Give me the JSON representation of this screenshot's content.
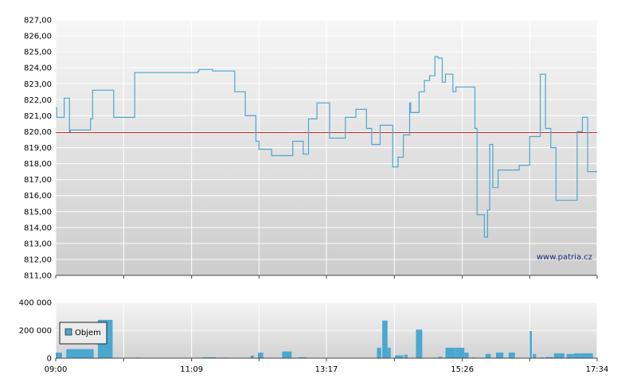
{
  "watermark": "www.patria.cz",
  "chart_data": [
    {
      "type": "line",
      "title": "",
      "ylim": [
        811,
        827
      ],
      "yticks": [
        "811,00",
        "812,00",
        "813,00",
        "814,00",
        "815,00",
        "816,00",
        "817,00",
        "818,00",
        "819,00",
        "820,00",
        "821,00",
        "822,00",
        "823,00",
        "824,00",
        "825,00",
        "826,00",
        "827,00"
      ],
      "xlim": [
        "09:00",
        "17:34"
      ],
      "reference_line": 819.95,
      "colors": {
        "line": "#4aa8d0",
        "reference": "#cc2222"
      },
      "series": [
        {
          "x": [
            "09:00",
            "09:01",
            "09:08",
            "09:13",
            "09:14",
            "09:25",
            "09:33",
            "09:35",
            "09:38",
            "09:40",
            "09:53",
            "09:55",
            "10:00",
            "10:13",
            "10:15",
            "10:30",
            "10:45",
            "11:00",
            "11:15",
            "11:16",
            "11:29",
            "11:30",
            "11:40",
            "11:50",
            "12:00",
            "12:10",
            "12:13",
            "12:20",
            "12:25",
            "12:35",
            "12:45",
            "12:55",
            "13:00",
            "13:08",
            "13:09",
            "13:20",
            "13:35",
            "13:45",
            "13:55",
            "14:00",
            "14:08",
            "14:20",
            "14:25",
            "14:30",
            "14:36",
            "14:37",
            "14:40",
            "14:45",
            "14:50",
            "14:55",
            "15:00",
            "15:03",
            "15:07",
            "15:10",
            "15:17",
            "15:20",
            "15:25",
            "15:30",
            "15:38",
            "15:40",
            "15:47",
            "15:50",
            "15:52",
            "15:55",
            "16:00",
            "16:07",
            "16:15",
            "16:20",
            "16:30",
            "16:40",
            "16:45",
            "16:50",
            "16:55",
            "16:57",
            "17:00",
            "17:03",
            "17:10",
            "17:15",
            "17:20",
            "17:25",
            "17:34"
          ],
          "values": [
            821.5,
            820.9,
            822.1,
            820.0,
            820.1,
            820.1,
            820.8,
            822.6,
            822.6,
            822.6,
            822.6,
            820.9,
            820.9,
            820.9,
            823.7,
            823.7,
            823.7,
            823.7,
            823.8,
            823.9,
            823.8,
            823.8,
            823.8,
            822.5,
            821.0,
            819.4,
            818.9,
            818.9,
            818.5,
            818.5,
            819.4,
            818.6,
            820.8,
            821.8,
            821.8,
            819.6,
            820.9,
            821.4,
            820.2,
            819.2,
            820.4,
            817.8,
            818.4,
            819.8,
            821.8,
            821.2,
            821.2,
            822.5,
            823.2,
            823.5,
            824.7,
            824.6,
            823.1,
            823.6,
            822.5,
            822.8,
            822.8,
            822.8,
            820.2,
            814.8,
            813.4,
            815.1,
            819.2,
            816.5,
            817.6,
            817.6,
            817.6,
            817.9,
            819.7,
            823.6,
            820.2,
            819.0,
            815.7,
            815.7,
            815.7,
            815.7,
            815.7,
            820.0,
            820.9,
            817.5,
            817.5
          ]
        }
      ]
    },
    {
      "type": "bar",
      "title": "",
      "ylim": [
        0,
        400000
      ],
      "yticks": [
        "0",
        "200 000",
        "400 000"
      ],
      "xticks": [
        "09:00",
        "11:09",
        "13:17",
        "15:26",
        "17:34"
      ],
      "legend": {
        "label": "Objem",
        "placement": "top-left"
      },
      "colors": {
        "bar": "#4aa8d0"
      },
      "bars": [
        {
          "start": "09:00",
          "end": "09:06",
          "value": 40000
        },
        {
          "start": "09:10",
          "end": "09:36",
          "value": 65000
        },
        {
          "start": "09:40",
          "end": "09:54",
          "value": 275000
        },
        {
          "start": "10:15",
          "end": "10:20",
          "value": 4000
        },
        {
          "start": "11:02",
          "end": "11:07",
          "value": 3000
        },
        {
          "start": "11:20",
          "end": "11:32",
          "value": 7000
        },
        {
          "start": "11:38",
          "end": "11:42",
          "value": 4000
        },
        {
          "start": "12:05",
          "end": "12:08",
          "value": 18000
        },
        {
          "start": "12:12",
          "end": "12:17",
          "value": 40000
        },
        {
          "start": "12:35",
          "end": "12:44",
          "value": 48000
        },
        {
          "start": "12:50",
          "end": "12:58",
          "value": 6000
        },
        {
          "start": "14:05",
          "end": "14:09",
          "value": 75000
        },
        {
          "start": "14:10",
          "end": "14:15",
          "value": 270000
        },
        {
          "start": "14:15",
          "end": "14:18",
          "value": 75000
        },
        {
          "start": "14:22",
          "end": "14:30",
          "value": 20000
        },
        {
          "start": "14:31",
          "end": "14:34",
          "value": 25000
        },
        {
          "start": "14:42",
          "end": "14:48",
          "value": 205000
        },
        {
          "start": "15:03",
          "end": "15:07",
          "value": 10000
        },
        {
          "start": "15:10",
          "end": "15:20",
          "value": 75000
        },
        {
          "start": "15:20",
          "end": "15:28",
          "value": 75000
        },
        {
          "start": "15:28",
          "end": "15:32",
          "value": 40000
        },
        {
          "start": "15:35",
          "end": "15:38",
          "value": 5000
        },
        {
          "start": "15:48",
          "end": "15:53",
          "value": 30000
        },
        {
          "start": "15:58",
          "end": "16:05",
          "value": 40000
        },
        {
          "start": "16:10",
          "end": "16:16",
          "value": 40000
        },
        {
          "start": "16:30",
          "end": "16:32",
          "value": 195000
        },
        {
          "start": "16:33",
          "end": "16:36",
          "value": 30000
        },
        {
          "start": "16:40",
          "end": "16:43",
          "value": 5000
        },
        {
          "start": "16:45",
          "end": "16:52",
          "value": 8000
        },
        {
          "start": "16:53",
          "end": "17:03",
          "value": 35000
        },
        {
          "start": "17:05",
          "end": "17:12",
          "value": 30000
        },
        {
          "start": "17:12",
          "end": "17:18",
          "value": 35000
        },
        {
          "start": "17:18",
          "end": "17:30",
          "value": 35000
        }
      ]
    }
  ]
}
